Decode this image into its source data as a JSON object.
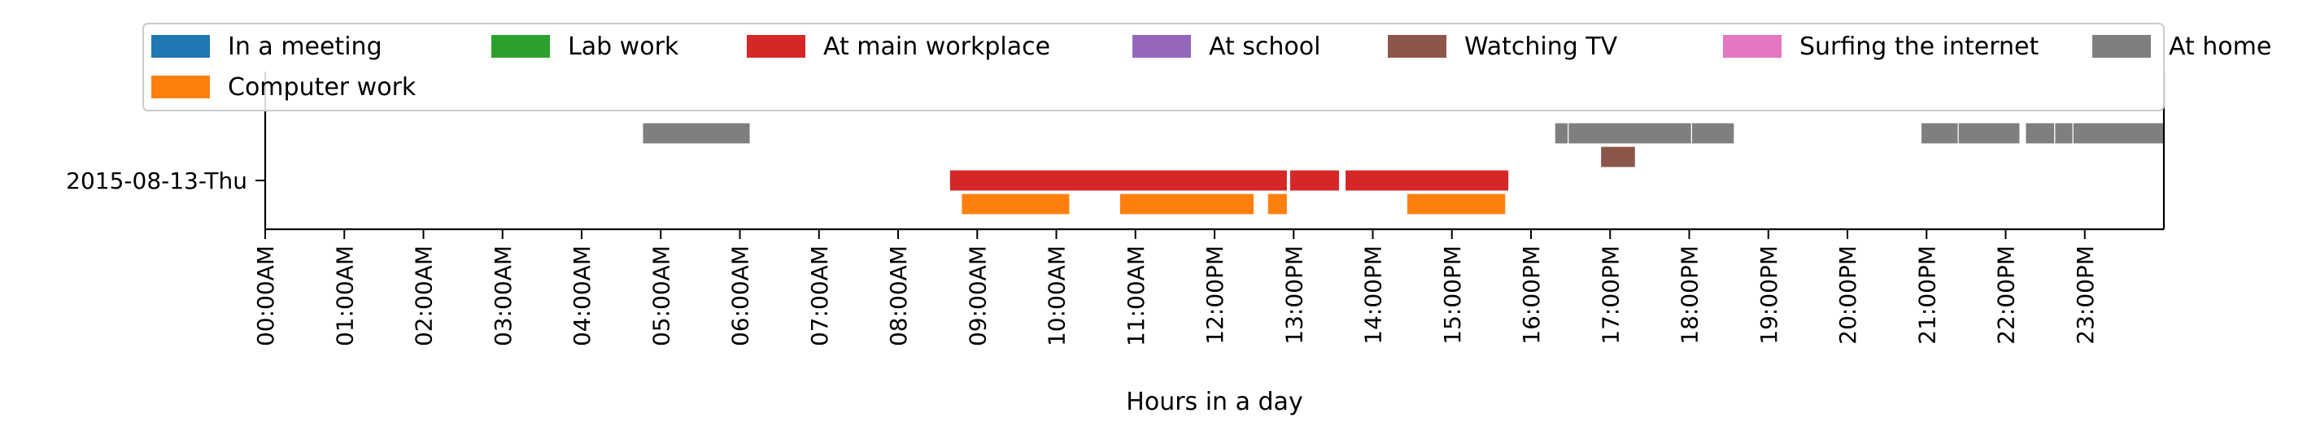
{
  "chart_data": {
    "type": "timeline",
    "xlabel": "Hours in a day",
    "xlim": [
      0,
      24
    ],
    "grid": false,
    "legend_placement": "top",
    "y_categories": [
      "2015-08-13-Thu"
    ],
    "x_tick_labels": [
      "00:00AM",
      "01:00AM",
      "02:00AM",
      "03:00AM",
      "04:00AM",
      "05:00AM",
      "06:00AM",
      "07:00AM",
      "08:00AM",
      "09:00AM",
      "10:00AM",
      "11:00AM",
      "12:00PM",
      "13:00PM",
      "14:00PM",
      "15:00PM",
      "16:00PM",
      "17:00PM",
      "18:00PM",
      "19:00PM",
      "20:00PM",
      "21:00PM",
      "22:00PM",
      "23:00PM"
    ],
    "legend": [
      {
        "label": "In a meeting",
        "color": "#1f77b4"
      },
      {
        "label": "Lab work",
        "color": "#2ca02c"
      },
      {
        "label": "At main workplace",
        "color": "#d62728"
      },
      {
        "label": "At school",
        "color": "#9467bd"
      },
      {
        "label": "Watching TV",
        "color": "#8c564b"
      },
      {
        "label": "Surfing the internet",
        "color": "#e377c2"
      },
      {
        "label": "At home",
        "color": "#7f7f7f"
      },
      {
        "label": "Computer work",
        "color": "#ff7f0e"
      }
    ],
    "series": [
      {
        "label": "At home",
        "color": "#7f7f7f",
        "lane": 1.0,
        "intervals": [
          [
            4.77,
            6.13
          ],
          [
            16.3,
            16.47
          ],
          [
            16.47,
            18.03
          ],
          [
            18.03,
            18.57
          ],
          [
            20.93,
            21.4
          ],
          [
            21.4,
            22.18
          ],
          [
            22.25,
            22.62
          ],
          [
            22.62,
            22.85
          ],
          [
            22.85,
            24.0
          ]
        ]
      },
      {
        "label": "Watching TV",
        "color": "#8c564b",
        "lane": 0.5,
        "intervals": [
          [
            16.88,
            17.32
          ]
        ]
      },
      {
        "label": "At main workplace",
        "color": "#d62728",
        "lane": 0.0,
        "intervals": [
          [
            8.65,
            12.92
          ],
          [
            12.95,
            13.58
          ],
          [
            13.65,
            15.72
          ]
        ]
      },
      {
        "label": "Computer work",
        "color": "#ff7f0e",
        "lane": -0.5,
        "intervals": [
          [
            8.8,
            10.17
          ],
          [
            10.8,
            12.5
          ],
          [
            12.67,
            12.92
          ],
          [
            14.43,
            15.68
          ]
        ]
      }
    ]
  }
}
